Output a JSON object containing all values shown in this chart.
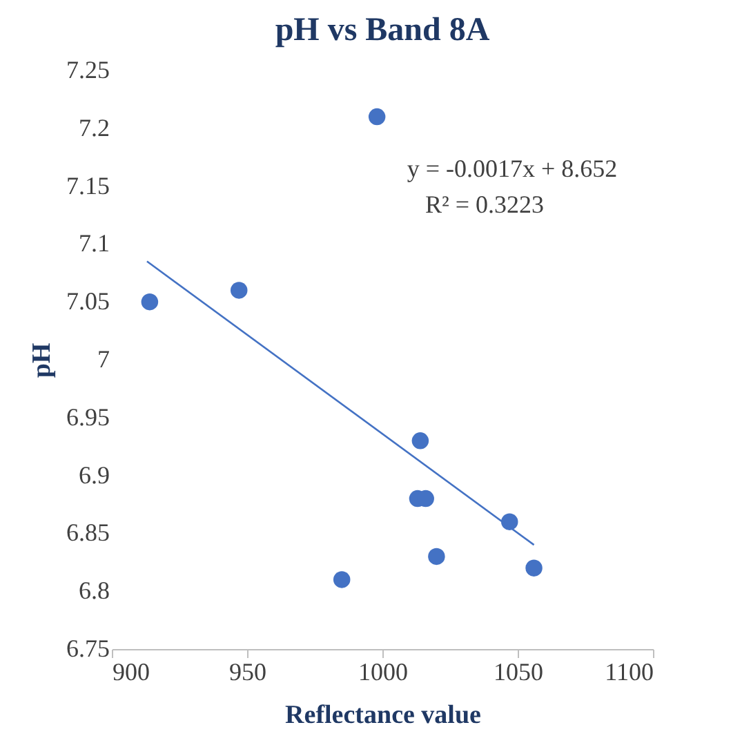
{
  "chart_data": {
    "type": "scatter",
    "title": "pH vs Band 8A",
    "xlabel": "Reflectance value",
    "ylabel": "pH",
    "series": [
      {
        "type": "scatter",
        "marker": "circle",
        "color": "#4472c4",
        "x": [
          914,
          947,
          998,
          1014,
          1013,
          1016,
          1020,
          1047,
          1056,
          985
        ],
        "values": [
          7.05,
          7.06,
          7.21,
          6.93,
          6.88,
          6.88,
          6.83,
          6.86,
          6.82,
          6.81
        ]
      },
      {
        "type": "line",
        "marker": "none",
        "color": "#4472c4",
        "x": [
          913,
          1056
        ],
        "values": [
          7.085,
          6.84
        ]
      }
    ],
    "annotations": [
      "y = -0.0017x + 8.652",
      "R² = 0.3223"
    ],
    "xlim": [
      900,
      1100
    ],
    "xticks": [
      900,
      950,
      1000,
      1050,
      1100
    ],
    "ylim": [
      6.75,
      7.25
    ],
    "yticks": [
      6.75,
      6.8,
      6.85,
      6.9,
      6.95,
      7,
      7.05,
      7.1,
      7.15,
      7.2,
      7.25
    ],
    "grid": false
  }
}
